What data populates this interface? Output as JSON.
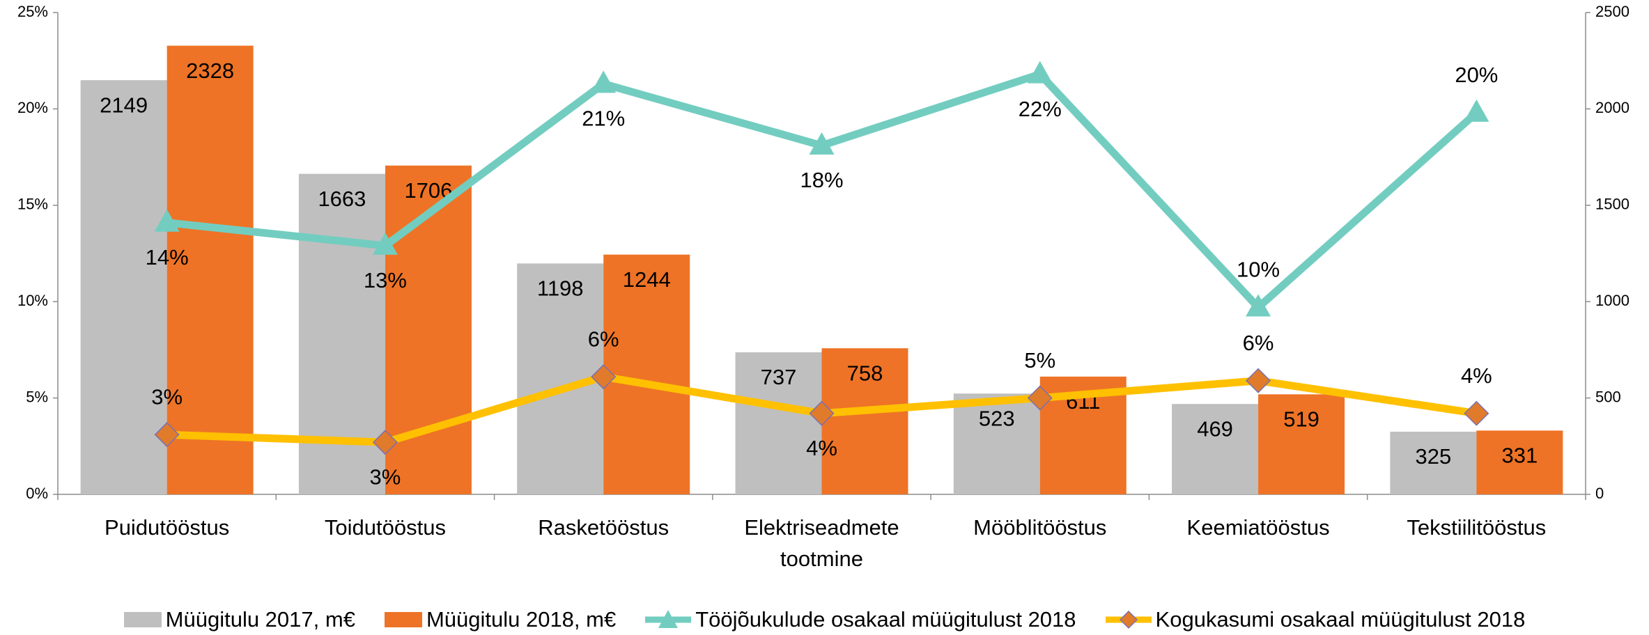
{
  "chart_data": {
    "type": "bar-line",
    "categories": [
      "Puidutööstus",
      "Toidutööstus",
      "Rasketööstus",
      "Elektriseadmete tootmine",
      "Mööblitööstus",
      "Keemiatööstus",
      "Tekstiilitööstus"
    ],
    "series": [
      {
        "name": "Müügitulu 2017, m€",
        "type": "bar",
        "axis": "y2",
        "color": "#bfbfbf",
        "values": [
          2149,
          1663,
          1198,
          737,
          523,
          469,
          325
        ]
      },
      {
        "name": "Müügitulu 2018, m€",
        "type": "bar",
        "axis": "y2",
        "color": "#ee7326",
        "values": [
          2328,
          1706,
          1244,
          758,
          611,
          519,
          331
        ]
      },
      {
        "name": "Tööjõukulude osakaal müügitulust 2018",
        "type": "line",
        "marker": "triangle",
        "color": "#72cdc0",
        "values": [
          14.1,
          12.9,
          21.3,
          18.1,
          21.8,
          9.7,
          19.8
        ],
        "value_labels": [
          "14%",
          "13%",
          "21%",
          "18%",
          "22%",
          "10%",
          "20%"
        ]
      },
      {
        "name": "Kogukasumi osakaal müügitulust 2018",
        "type": "line",
        "marker": "diamond",
        "color": "#ffc000",
        "marker_color": "#e07b2b",
        "values": [
          3.1,
          2.7,
          6.1,
          4.2,
          5.0,
          5.9,
          4.2
        ],
        "value_labels": [
          "3%",
          "3%",
          "6%",
          "4%",
          "5%",
          "6%",
          "4%"
        ]
      }
    ],
    "ylim": [
      0,
      25
    ],
    "yticks": [
      {
        "value": 0,
        "label": "0%"
      },
      {
        "value": 5,
        "label": "5%"
      },
      {
        "value": 10,
        "label": "10%"
      },
      {
        "value": 15,
        "label": "15%"
      },
      {
        "value": 20,
        "label": "20%"
      },
      {
        "value": 25,
        "label": "25%"
      }
    ],
    "y2lim": [
      0,
      2500
    ],
    "y2ticks": [
      0,
      500,
      1000,
      1500,
      2000,
      2500
    ],
    "legend": "bottom"
  }
}
